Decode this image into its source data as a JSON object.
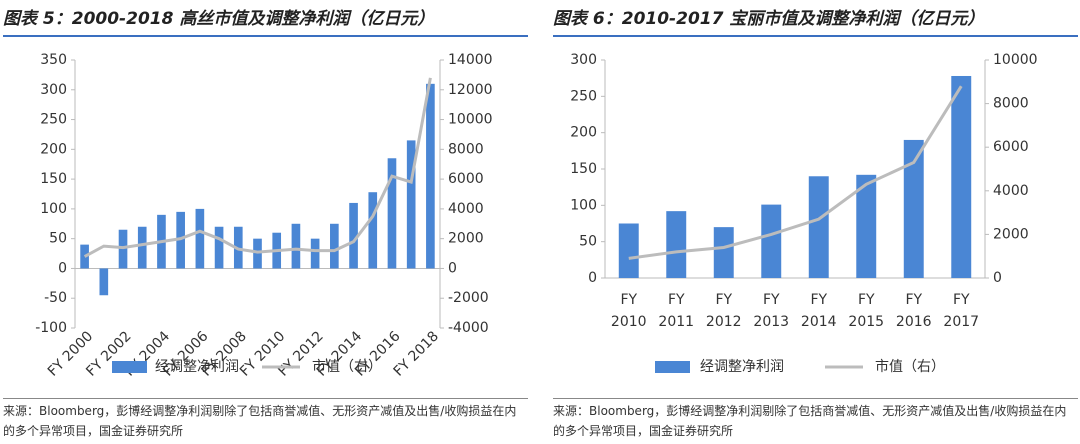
{
  "chart_data": [
    {
      "type": "bar",
      "title": "图表 5：2000-2018 高丝市值及调整净利润（亿日元）",
      "categories": [
        "FY 2000",
        null,
        "FY 2002",
        null,
        "FY 2004",
        null,
        "FY 2006",
        null,
        "FY 2008",
        null,
        "FY 2010",
        null,
        "FY 2012",
        null,
        "FY 2014",
        null,
        "FY 2016",
        null,
        "FY 2018"
      ],
      "series": [
        {
          "name": "经调整净利润",
          "color": "#4a86d4",
          "type": "bar",
          "values": [
            40,
            -45,
            65,
            70,
            90,
            95,
            100,
            70,
            70,
            50,
            60,
            75,
            50,
            75,
            110,
            128,
            185,
            215,
            310
          ]
        },
        {
          "name": "市值（右）",
          "color": "#bcbcbc",
          "type": "line",
          "axis": "y2",
          "values": [
            800,
            1500,
            1400,
            1600,
            1800,
            2000,
            2500,
            2000,
            1300,
            1100,
            1200,
            1300,
            1200,
            1200,
            1800,
            3500,
            6200,
            5800,
            12800
          ]
        }
      ],
      "ylim": [
        -100,
        350
      ],
      "yticks": [
        -100,
        -50,
        0,
        50,
        100,
        150,
        200,
        250,
        300,
        350
      ],
      "y2lim": [
        -4000,
        14000
      ],
      "y2ticks": [
        -4000,
        -2000,
        0,
        2000,
        4000,
        6000,
        8000,
        10000,
        12000,
        14000
      ],
      "source": "来源：Bloomberg，彭博经调整净利润剔除了包括商誉减值、无形资产减值及出售/收购损益在内的多个异常项目，国金证券研究所"
    },
    {
      "type": "bar",
      "title": "图表 6：2010-2017 宝丽市值及调整净利润（亿日元）",
      "categories": [
        "FY 2010",
        "FY 2011",
        "FY 2012",
        "FY 2013",
        "FY 2014",
        "FY 2015",
        "FY 2016",
        "FY 2017"
      ],
      "series": [
        {
          "name": "经调整净利润",
          "color": "#4a86d4",
          "type": "bar",
          "values": [
            75,
            92,
            70,
            101,
            140,
            142,
            190,
            278
          ]
        },
        {
          "name": "市值（右）",
          "color": "#bcbcbc",
          "type": "line",
          "axis": "y2",
          "values": [
            900,
            1200,
            1400,
            2000,
            2700,
            4300,
            5300,
            8800
          ]
        }
      ],
      "ylim": [
        0,
        300
      ],
      "yticks": [
        0,
        50,
        100,
        150,
        200,
        250,
        300
      ],
      "y2lim": [
        0,
        10000
      ],
      "y2ticks": [
        0,
        2000,
        4000,
        6000,
        8000,
        10000
      ],
      "source": "来源：Bloomberg，彭博经调整净利润剔除了包括商誉减值、无形资产减值及出售/收购损益在内的多个异常项目，国金证券研究所"
    }
  ]
}
